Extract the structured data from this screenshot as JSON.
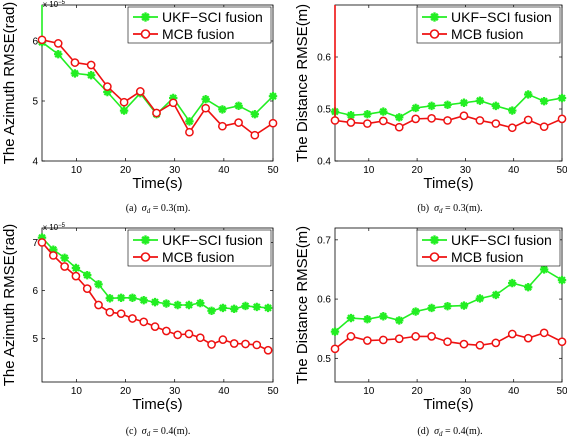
{
  "colors": {
    "ukf": "#22ee22",
    "mcb": "#ee1111"
  },
  "chart_data": [
    {
      "type": "line",
      "panel": "a",
      "caption": {
        "label": "(a)",
        "sigma": "σ",
        "sub": "d",
        "value": "= 0.3(m)."
      },
      "xlabel": "Time(s)",
      "ylabel": "The Azimuth RMSE(rad)",
      "exponent": "x 10",
      "exponent_power": "−5",
      "xlim": [
        3,
        50
      ],
      "ylim": [
        4,
        6.6
      ],
      "xticks": [
        10,
        20,
        30,
        40,
        50
      ],
      "yticks": [
        4,
        5,
        6
      ],
      "legend_position": "top-right",
      "x": [
        3,
        6.3,
        9.7,
        13,
        16.3,
        19.7,
        23,
        26.3,
        29.7,
        33,
        36.3,
        39.7,
        43,
        46.3,
        50
      ],
      "series": [
        {
          "name": "UKF−SCI fusion",
          "marker": "star",
          "values": [
            5.98,
            5.78,
            5.46,
            5.43,
            5.15,
            4.84,
            5.13,
            4.78,
            5.05,
            4.66,
            5.03,
            4.86,
            4.92,
            4.78,
            5.08
          ]
        },
        {
          "name": "MCB fusion",
          "marker": "circle",
          "values": [
            6.02,
            5.96,
            5.64,
            5.6,
            5.24,
            4.98,
            5.16,
            4.8,
            4.97,
            4.48,
            4.88,
            4.58,
            4.64,
            4.43,
            4.63
          ]
        }
      ],
      "spike_series": 0
    },
    {
      "type": "line",
      "panel": "b",
      "caption": {
        "label": "(b)",
        "sigma": "σ",
        "sub": "d",
        "value": "= 0.3(m)."
      },
      "xlabel": "Time(s)",
      "ylabel": "The Distance RMSE(m)",
      "xlim": [
        3,
        50
      ],
      "ylim": [
        0.4,
        0.7
      ],
      "xticks": [
        10,
        20,
        30,
        40,
        50
      ],
      "yticks": [
        0.4,
        0.5,
        0.6
      ],
      "legend_position": "top-right",
      "x": [
        3,
        6.3,
        9.7,
        13,
        16.3,
        19.7,
        23,
        26.3,
        29.7,
        33,
        36.3,
        39.7,
        43,
        46.3,
        50
      ],
      "series": [
        {
          "name": "UKF−SCI fusion",
          "marker": "star",
          "values": [
            0.495,
            0.488,
            0.49,
            0.495,
            0.484,
            0.502,
            0.506,
            0.508,
            0.512,
            0.516,
            0.506,
            0.497,
            0.528,
            0.515,
            0.521
          ]
        },
        {
          "name": "MCB fusion",
          "marker": "circle",
          "values": [
            0.478,
            0.474,
            0.472,
            0.477,
            0.465,
            0.481,
            0.482,
            0.478,
            0.487,
            0.478,
            0.472,
            0.464,
            0.479,
            0.466,
            0.481
          ]
        }
      ],
      "spike_series": 1
    },
    {
      "type": "line",
      "panel": "c",
      "caption": {
        "label": "(c)",
        "sigma": "σ",
        "sub": "d",
        "value": "= 0.4(m)."
      },
      "xlabel": "Time(s)",
      "ylabel": "The Azimuth RMSE(rad)",
      "exponent": "x 10",
      "exponent_power": "−5",
      "xlim": [
        3,
        50
      ],
      "ylim": [
        4.1,
        7.3
      ],
      "xticks": [
        10,
        20,
        30,
        40,
        50
      ],
      "yticks": [
        5,
        6,
        7
      ],
      "legend_position": "top-right",
      "x": [
        3,
        5.3,
        7.6,
        9.9,
        12.2,
        14.5,
        16.8,
        19.1,
        21.4,
        23.7,
        26,
        28.3,
        30.6,
        32.9,
        35.2,
        37.5,
        39.8,
        42.1,
        44.4,
        46.7,
        49
      ],
      "series": [
        {
          "name": "UKF−SCI fusion",
          "marker": "star",
          "values": [
            7.1,
            6.85,
            6.68,
            6.47,
            6.32,
            6.13,
            5.84,
            5.85,
            5.85,
            5.8,
            5.76,
            5.73,
            5.7,
            5.7,
            5.74,
            5.58,
            5.64,
            5.62,
            5.68,
            5.66,
            5.64
          ]
        },
        {
          "name": "MCB fusion",
          "marker": "circle",
          "values": [
            7.0,
            6.73,
            6.5,
            6.3,
            6.04,
            5.7,
            5.55,
            5.52,
            5.42,
            5.35,
            5.25,
            5.16,
            5.08,
            5.1,
            5.02,
            4.88,
            4.98,
            4.9,
            4.89,
            4.87,
            4.76
          ]
        }
      ],
      "spike_series": null
    },
    {
      "type": "line",
      "panel": "d",
      "caption": {
        "label": "(d)",
        "sigma": "σ",
        "sub": "d",
        "value": "= 0.4(m)."
      },
      "xlabel": "Time(s)",
      "ylabel": "The Distance RMSE(m)",
      "xlim": [
        3,
        50
      ],
      "ylim": [
        0.46,
        0.72
      ],
      "xticks": [
        10,
        20,
        30,
        40,
        50
      ],
      "yticks": [
        0.5,
        0.6,
        0.7
      ],
      "legend_position": "top-right",
      "x": [
        3,
        6.3,
        9.7,
        13,
        16.3,
        19.7,
        23,
        26.3,
        29.7,
        33,
        36.3,
        39.7,
        43,
        46.3,
        50
      ],
      "series": [
        {
          "name": "UKF−SCI fusion",
          "marker": "star",
          "values": [
            0.545,
            0.568,
            0.566,
            0.571,
            0.564,
            0.579,
            0.585,
            0.588,
            0.589,
            0.601,
            0.607,
            0.627,
            0.62,
            0.65,
            0.632
          ]
        },
        {
          "name": "MCB fusion",
          "marker": "circle",
          "values": [
            0.516,
            0.537,
            0.53,
            0.531,
            0.533,
            0.537,
            0.537,
            0.528,
            0.524,
            0.522,
            0.526,
            0.541,
            0.534,
            0.543,
            0.528
          ]
        }
      ],
      "spike_series": null
    }
  ]
}
